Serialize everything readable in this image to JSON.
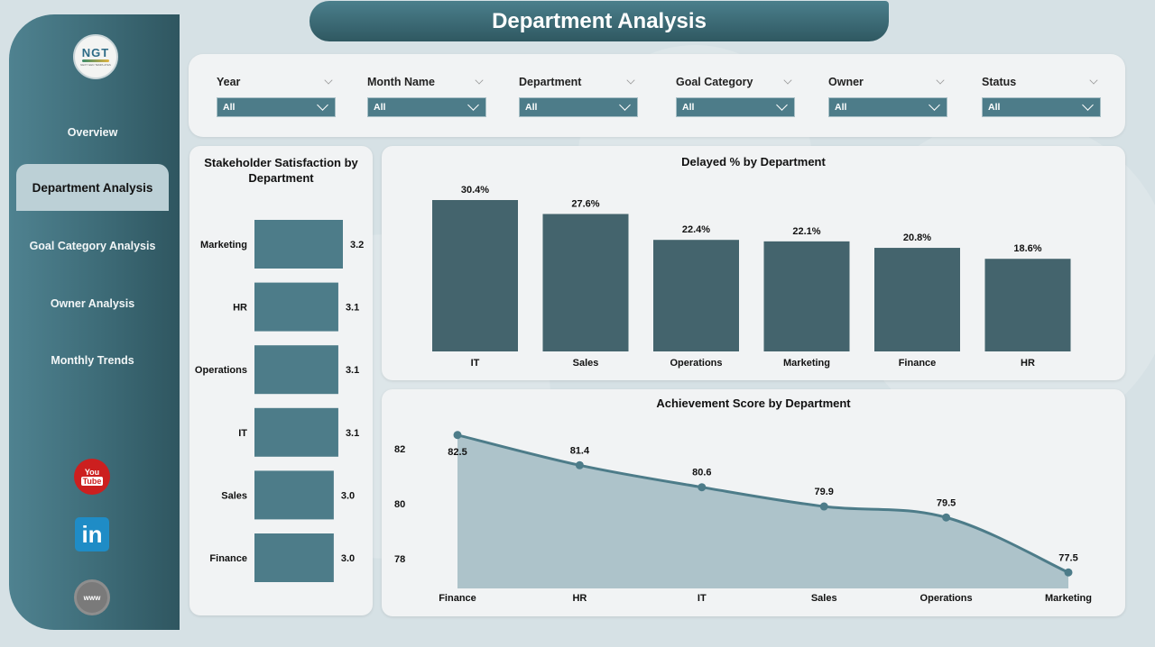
{
  "app": {
    "page_title": "Department Analysis",
    "logo": {
      "text": "NGT",
      "subtext": "NEXT GEN TEMPLATES"
    }
  },
  "sidebar": {
    "items": [
      {
        "label": "Overview",
        "active": false
      },
      {
        "label": "Department Analysis",
        "active": true
      },
      {
        "label": "Goal Category Analysis",
        "active": false
      },
      {
        "label": "Owner Analysis",
        "active": false
      },
      {
        "label": "Monthly Trends",
        "active": false
      }
    ],
    "social": [
      {
        "name": "youtube-icon",
        "label_top": "You",
        "label_bottom": "Tube"
      },
      {
        "name": "linkedin-icon",
        "label": "in"
      },
      {
        "name": "website-icon",
        "label": "www"
      }
    ]
  },
  "filters": [
    {
      "label": "Year",
      "value": "All"
    },
    {
      "label": "Month Name",
      "value": "All"
    },
    {
      "label": "Department",
      "value": "All"
    },
    {
      "label": "Goal Category",
      "value": "All"
    },
    {
      "label": "Owner",
      "value": "All"
    },
    {
      "label": "Status",
      "value": "All"
    }
  ],
  "colors": {
    "accent": "#4d7c89",
    "bar_dark": "#44646d",
    "area_fill": "#adc3ca",
    "line": "#4d7c89"
  },
  "chart_data": [
    {
      "type": "bar",
      "orientation": "horizontal",
      "title": "Stakeholder Satisfaction by Department",
      "categories": [
        "Marketing",
        "HR",
        "Operations",
        "IT",
        "Sales",
        "Finance"
      ],
      "values": [
        3.2,
        3.1,
        3.1,
        3.1,
        3.0,
        3.0
      ],
      "data_labels": [
        "3.2",
        "3.1",
        "3.1",
        "3.1",
        "3.0",
        "3.0"
      ],
      "xlabel": "",
      "ylabel": "",
      "grid": false
    },
    {
      "type": "bar",
      "title": "Delayed % by Department",
      "categories": [
        "IT",
        "Sales",
        "Operations",
        "Marketing",
        "Finance",
        "HR"
      ],
      "values": [
        30.4,
        27.6,
        22.4,
        22.1,
        20.8,
        18.6
      ],
      "data_labels": [
        "30.4%",
        "27.6%",
        "22.4%",
        "22.1%",
        "20.8%",
        "18.6%"
      ],
      "xlabel": "",
      "ylabel": "",
      "ylim": [
        0,
        30.4
      ],
      "grid": false
    },
    {
      "type": "area",
      "title": "Achievement Score by Department",
      "categories": [
        "Finance",
        "HR",
        "IT",
        "Sales",
        "Operations",
        "Marketing"
      ],
      "values": [
        82.5,
        81.4,
        80.6,
        79.9,
        79.5,
        77.5
      ],
      "data_labels": [
        "82.5",
        "81.4",
        "80.6",
        "79.9",
        "79.5",
        "77.5"
      ],
      "yticks": [
        "82",
        "80",
        "78"
      ],
      "ylim": [
        77,
        83
      ],
      "xlabel": "",
      "ylabel": "",
      "grid": false
    }
  ]
}
